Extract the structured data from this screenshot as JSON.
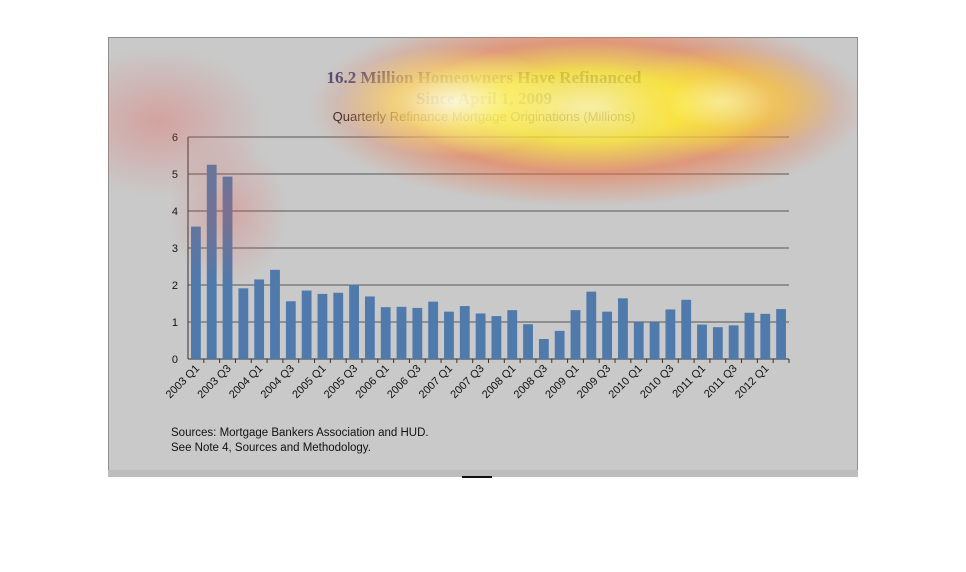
{
  "chart_data": {
    "type": "bar",
    "title": "16.2 Million Homeowners Have Refinanced",
    "title_line2": "Since April 1, 2009",
    "subtitle": "Quarterly Refinance Mortgage Originations (Millions)",
    "ylim": [
      0,
      6
    ],
    "yticks": [
      "0",
      "1",
      "2",
      "3",
      "4",
      "5",
      "6"
    ],
    "grid": true,
    "categories": [
      "2003 Q1",
      "2003 Q2",
      "2003 Q3",
      "2003 Q4",
      "2004 Q1",
      "2004 Q2",
      "2004 Q3",
      "2004 Q4",
      "2005 Q1",
      "2005 Q2",
      "2005 Q3",
      "2005 Q4",
      "2006 Q1",
      "2006 Q2",
      "2006 Q3",
      "2006 Q4",
      "2007 Q1",
      "2007 Q2",
      "2007 Q3",
      "2007 Q4",
      "2008 Q1",
      "2008 Q2",
      "2008 Q3",
      "2008 Q4",
      "2009 Q1",
      "2009 Q2",
      "2009 Q3",
      "2009 Q4",
      "2010 Q1",
      "2010 Q2",
      "2010 Q3",
      "2010 Q4",
      "2011 Q1",
      "2011 Q2",
      "2011 Q3",
      "2011 Q4",
      "2012 Q1",
      "2012 Q2"
    ],
    "tick_labels_shown": [
      "2003 Q1",
      "2003 Q3",
      "2004 Q1",
      "2004 Q3",
      "2005 Q1",
      "2005 Q3",
      "2006 Q1",
      "2006 Q3",
      "2007 Q1",
      "2007 Q3",
      "2008 Q1",
      "2008 Q3",
      "2009 Q1",
      "2009 Q3",
      "2010 Q1",
      "2010 Q3",
      "2011 Q1",
      "2011 Q3",
      "2012 Q1"
    ],
    "values": [
      3.58,
      5.25,
      4.93,
      1.91,
      2.15,
      2.41,
      1.56,
      1.85,
      1.76,
      1.79,
      2.01,
      1.69,
      1.4,
      1.41,
      1.38,
      1.55,
      1.28,
      1.43,
      1.23,
      1.16,
      1.32,
      0.94,
      0.54,
      0.76,
      1.32,
      1.82,
      1.28,
      1.64,
      1.0,
      1.0,
      1.34,
      1.6,
      0.93,
      0.86,
      0.91,
      1.25,
      1.22,
      1.35
    ],
    "bar_color": "#4f7aab"
  },
  "sources": {
    "line1": "Sources:  Mortgage Bankers Association and HUD.",
    "line2": "See Note 4, Sources and Methodology."
  }
}
